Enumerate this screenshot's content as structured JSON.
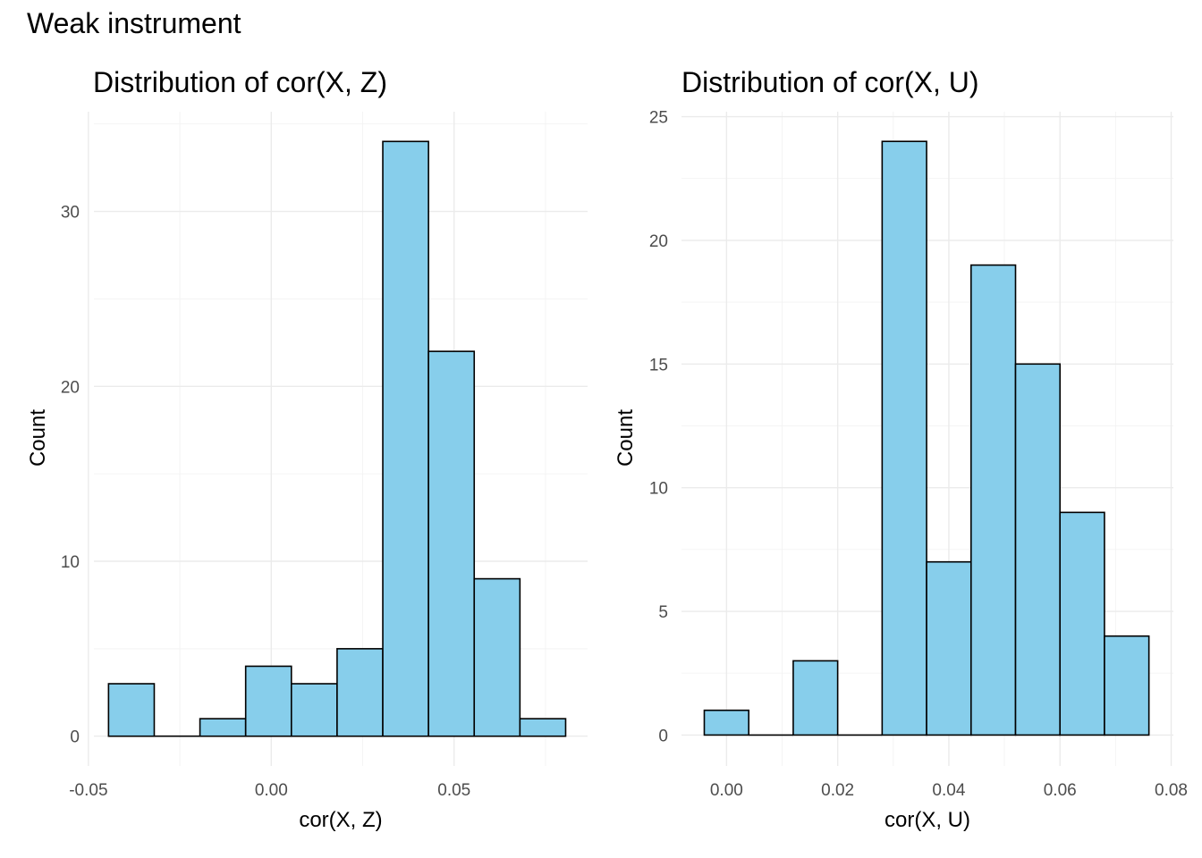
{
  "page_title": "Weak instrument",
  "colors": {
    "bar_fill": "#87CEEB",
    "bar_stroke": "#000000"
  },
  "chart_data": [
    {
      "type": "bar",
      "title": "Distribution of cor(X, Z)",
      "xlabel": "cor(X, Z)",
      "ylabel": "Count",
      "xlim": [
        -0.0485,
        0.0865
      ],
      "ylim": [
        -1.7,
        35.7
      ],
      "xticks": [
        -0.05,
        0.0,
        0.05
      ],
      "xtick_labels": [
        "-0.05",
        "0.00",
        "0.05"
      ],
      "yticks": [
        0,
        10,
        20,
        30
      ],
      "ytick_labels": [
        "0",
        "10",
        "20",
        "30"
      ],
      "grid": true,
      "bins": [
        {
          "x0": -0.0445,
          "x1": -0.032,
          "count": 3
        },
        {
          "x0": -0.032,
          "x1": -0.0195,
          "count": 0
        },
        {
          "x0": -0.0195,
          "x1": -0.007,
          "count": 1
        },
        {
          "x0": -0.007,
          "x1": 0.0055,
          "count": 4
        },
        {
          "x0": 0.0055,
          "x1": 0.018,
          "count": 3
        },
        {
          "x0": 0.018,
          "x1": 0.0305,
          "count": 5
        },
        {
          "x0": 0.0305,
          "x1": 0.043,
          "count": 34
        },
        {
          "x0": 0.043,
          "x1": 0.0555,
          "count": 22
        },
        {
          "x0": 0.0555,
          "x1": 0.068,
          "count": 9
        },
        {
          "x0": 0.068,
          "x1": 0.0805,
          "count": 1
        }
      ]
    },
    {
      "type": "bar",
      "title": "Distribution of cor(X, U)",
      "xlabel": "cor(X, U)",
      "ylabel": "Count",
      "xlim": [
        -0.0081,
        0.0804
      ],
      "ylim": [
        -1.25,
        25.2
      ],
      "xticks": [
        0.0,
        0.02,
        0.04,
        0.06,
        0.08
      ],
      "xtick_labels": [
        "0.00",
        "0.02",
        "0.04",
        "0.06",
        "0.08"
      ],
      "yticks": [
        0,
        5,
        10,
        15,
        20,
        25
      ],
      "ytick_labels": [
        "0",
        "5",
        "10",
        "15",
        "20",
        "25"
      ],
      "grid": true,
      "bins": [
        {
          "x0": -0.004,
          "x1": 0.004,
          "count": 1
        },
        {
          "x0": 0.004,
          "x1": 0.012,
          "count": 0
        },
        {
          "x0": 0.012,
          "x1": 0.02,
          "count": 3
        },
        {
          "x0": 0.02,
          "x1": 0.028,
          "count": 0
        },
        {
          "x0": 0.028,
          "x1": 0.036,
          "count": 24
        },
        {
          "x0": 0.036,
          "x1": 0.044,
          "count": 7
        },
        {
          "x0": 0.044,
          "x1": 0.052,
          "count": 19
        },
        {
          "x0": 0.052,
          "x1": 0.06,
          "count": 15
        },
        {
          "x0": 0.06,
          "x1": 0.068,
          "count": 9
        },
        {
          "x0": 0.068,
          "x1": 0.076,
          "count": 4
        }
      ]
    }
  ]
}
